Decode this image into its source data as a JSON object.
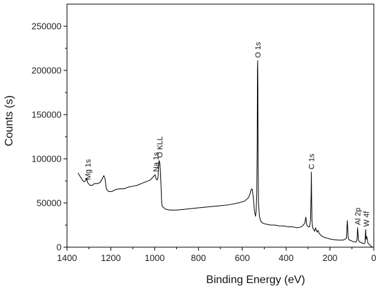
{
  "chart_data": {
    "type": "line",
    "title": "",
    "xlabel": "Binding Energy (eV)",
    "ylabel": "Counts (s)",
    "xlim": [
      1400,
      0
    ],
    "ylim": [
      0,
      275000
    ],
    "x_reversed": true,
    "x_ticks": [
      1400,
      1200,
      1000,
      800,
      600,
      400,
      200,
      0
    ],
    "y_ticks": [
      0,
      50000,
      100000,
      150000,
      200000,
      250000
    ],
    "grid": false,
    "line_color": "#000000",
    "series": [
      {
        "x": [
          1350,
          1340,
          1330,
          1322,
          1315,
          1310,
          1306,
          1302,
          1295,
          1285,
          1275,
          1262,
          1250,
          1240,
          1232,
          1226,
          1222,
          1218,
          1210,
          1195,
          1180,
          1160,
          1140,
          1120,
          1100,
          1080,
          1060,
          1040,
          1020,
          1005,
          998,
          993,
          988,
          984,
          980,
          977,
          974,
          971,
          968,
          965,
          960,
          950,
          930,
          900,
          860,
          820,
          780,
          740,
          700,
          660,
          620,
          590,
          572,
          565,
          560,
          555,
          550,
          545,
          540,
          537,
          534,
          532,
          531,
          530,
          529,
          528,
          526,
          522,
          515,
          505,
          490,
          470,
          450,
          430,
          410,
          390,
          370,
          350,
          330,
          315,
          310,
          306,
          302,
          298,
          293,
          289,
          286,
          285,
          284,
          282,
          279,
          275,
          270,
          266,
          262,
          258,
          254,
          250,
          240,
          225,
          210,
          195,
          180,
          160,
          140,
          125,
          121,
          119,
          117,
          115,
          110,
          100,
          90,
          80,
          76,
          74,
          72,
          70,
          65,
          55,
          45,
          40,
          37,
          35,
          32,
          28,
          25,
          20,
          15,
          10,
          5,
          0
        ],
        "y": [
          84000,
          80000,
          76000,
          74000,
          75000,
          78000,
          73000,
          72000,
          70000,
          70000,
          72000,
          72000,
          73000,
          77000,
          81000,
          77000,
          68000,
          65000,
          63000,
          63000,
          65000,
          66000,
          66000,
          68000,
          69000,
          70000,
          72000,
          74000,
          76000,
          80000,
          82000,
          77000,
          76000,
          80000,
          98000,
          96000,
          88000,
          70000,
          50000,
          46000,
          45000,
          43000,
          42000,
          42000,
          43000,
          44000,
          45000,
          46000,
          47000,
          48000,
          50000,
          52000,
          56000,
          60000,
          65000,
          66000,
          57000,
          42000,
          35000,
          40000,
          60000,
          120000,
          200000,
          211000,
          180000,
          95000,
          50000,
          35000,
          29000,
          27000,
          26000,
          25000,
          25000,
          24000,
          24000,
          23000,
          23000,
          22000,
          23000,
          27000,
          34000,
          25000,
          24000,
          23000,
          23000,
          30000,
          60000,
          85000,
          60000,
          30000,
          22000,
          20000,
          18000,
          22000,
          19000,
          17000,
          19000,
          16000,
          13000,
          11000,
          10000,
          9000,
          8500,
          8000,
          8000,
          10000,
          30000,
          22000,
          12000,
          9000,
          8000,
          7000,
          6000,
          6000,
          9000,
          22000,
          16000,
          8000,
          6000,
          5000,
          4000,
          5000,
          20000,
          9000,
          12000,
          6000,
          4000,
          3000,
          1500,
          500,
          0,
          0
        ]
      }
    ],
    "annotations": [
      {
        "text": "Mg 1s",
        "x": 1305,
        "y": 73000
      },
      {
        "text": "Na 1s",
        "x": 995,
        "y": 82000
      },
      {
        "text": "O KLL",
        "x": 978,
        "y": 98000
      },
      {
        "text": "O 1s",
        "x": 530,
        "y": 211000
      },
      {
        "text": "C 1s",
        "x": 285,
        "y": 85000
      },
      {
        "text": "Al 2p",
        "x": 74,
        "y": 22000
      },
      {
        "text": "W 4f",
        "x": 35,
        "y": 20000
      }
    ]
  }
}
